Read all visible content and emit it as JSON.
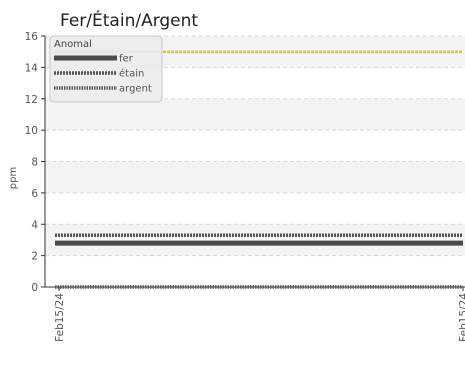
{
  "chart_data": {
    "type": "line",
    "title": "Fer/Étain/Argent",
    "xlabel": "",
    "ylabel": "ppm",
    "ylim": [
      0,
      16
    ],
    "yticks": [
      "0",
      "2",
      "4",
      "6",
      "8",
      "10",
      "12",
      "14",
      "16"
    ],
    "x": [
      "Feb15/24",
      "Feb15/24"
    ],
    "grid": true,
    "legend_position": "top-left",
    "series": [
      {
        "name": "fer",
        "values": [
          2.8,
          2.8
        ],
        "color": "#4a4a4a",
        "style": "solid"
      },
      {
        "name": "étain",
        "values": [
          3.3,
          3.3
        ],
        "color": "#555555",
        "style": "dashed"
      },
      {
        "name": "argent",
        "values": [
          0,
          0
        ],
        "color": "#555555",
        "style": "dotted"
      }
    ],
    "threshold": {
      "name": "Anomal",
      "value": 15,
      "color": "#f0c020"
    }
  }
}
